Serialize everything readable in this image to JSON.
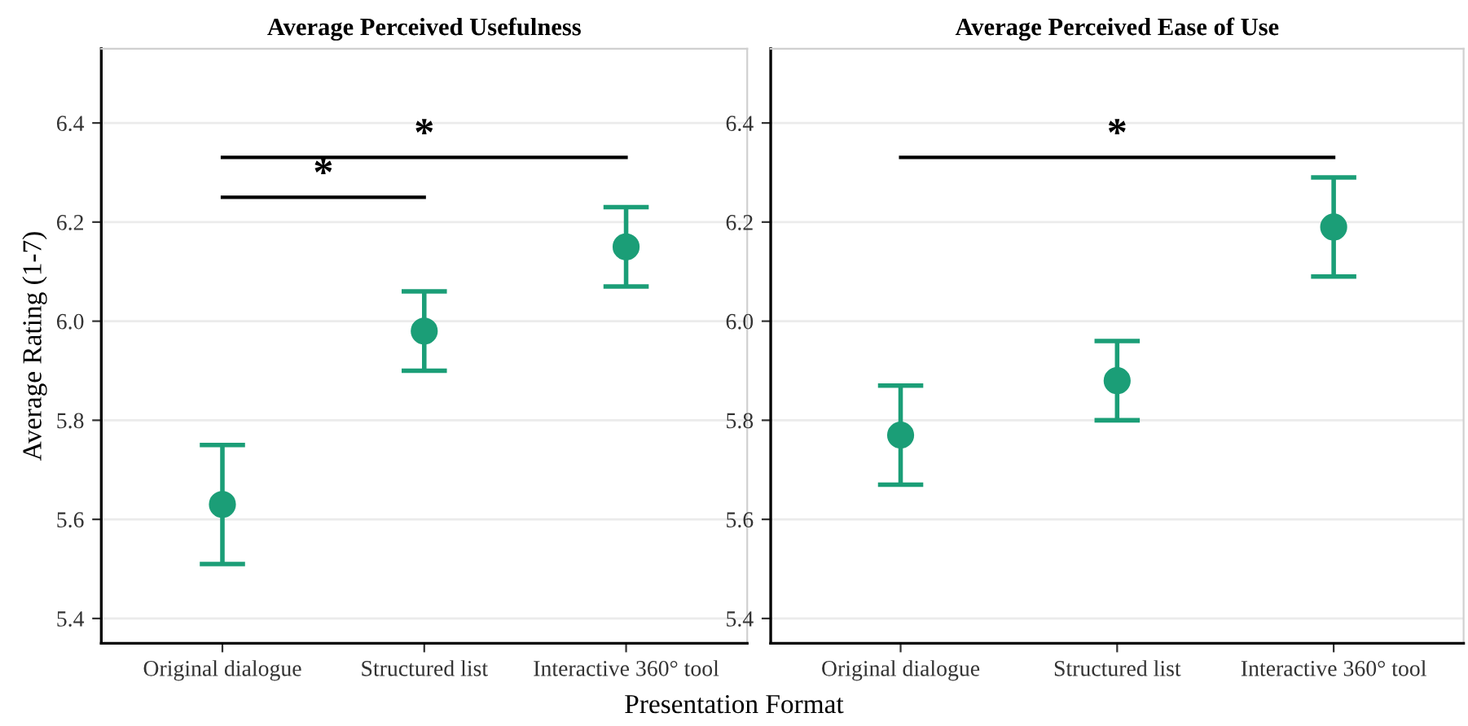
{
  "chart_data": [
    {
      "type": "scatter",
      "title": "Average Perceived Usefulness",
      "xlabel": "Presentation Format",
      "ylabel": "Average Rating (1-7)",
      "categories": [
        "Original dialogue",
        "Structured list",
        "Interactive 360° tool"
      ],
      "series": [
        {
          "color": "#1b9e77",
          "values": [
            5.63,
            5.98,
            6.15
          ],
          "errors": [
            0.12,
            0.08,
            0.08
          ]
        }
      ],
      "ylim": [
        5.35,
        6.55
      ],
      "yticks": [
        {
          "value": 5.4,
          "label": "5.4"
        },
        {
          "value": 5.6,
          "label": "5.6"
        },
        {
          "value": 5.8,
          "label": "5.8"
        },
        {
          "value": 6.0,
          "label": "6.0"
        },
        {
          "value": 6.2,
          "label": "6.2"
        },
        {
          "value": 6.4,
          "label": "6.4"
        }
      ],
      "grid": "y",
      "marker": "circle",
      "annotations": [
        "*",
        "*"
      ]
    },
    {
      "type": "scatter",
      "title": "Average Perceived Ease of Use",
      "categories": [
        "Original dialogue",
        "Structured list",
        "Interactive 360° tool"
      ],
      "series": [
        {
          "color": "#1b9e77",
          "values": [
            5.77,
            5.88,
            6.19
          ],
          "errors": [
            0.1,
            0.08,
            0.1
          ]
        }
      ],
      "ylim": [
        5.35,
        6.55
      ],
      "yticks": [
        {
          "value": 5.4,
          "label": "5.4"
        },
        {
          "value": 5.6,
          "label": "5.6"
        },
        {
          "value": 5.8,
          "label": "5.8"
        },
        {
          "value": 6.0,
          "label": "6.0"
        },
        {
          "value": 6.2,
          "label": "6.2"
        },
        {
          "value": 6.4,
          "label": "6.4"
        }
      ],
      "grid": "y",
      "marker": "circle",
      "annotations": [
        "*"
      ]
    }
  ]
}
